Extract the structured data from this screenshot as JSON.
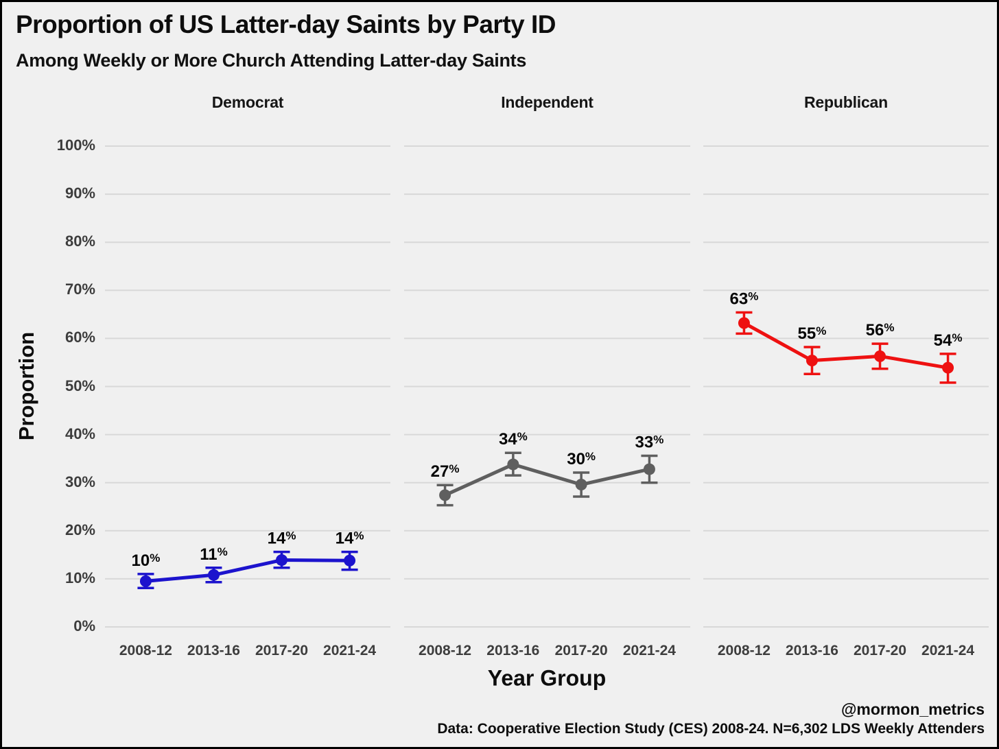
{
  "chart_data": {
    "type": "line",
    "faceted": true,
    "title": "Proportion of US Latter-day Saints by Party ID",
    "subtitle": "Among Weekly or More Church Attending Latter-day Saints",
    "xlabel": "Year Group",
    "ylabel": "Proportion",
    "ylim": [
      0,
      100
    ],
    "yticks": [
      "0%",
      "10%",
      "20%",
      "30%",
      "40%",
      "50%",
      "60%",
      "70%",
      "80%",
      "90%",
      "100%"
    ],
    "categories": [
      "2008-12",
      "2013-16",
      "2017-20",
      "2021-24"
    ],
    "grid": "horizontal major gridlines only",
    "legend_position": "none",
    "error_bars": "confidence interval whiskers with caps",
    "facets": [
      {
        "name": "Democrat",
        "color": "#1c13cd",
        "values": [
          9.5,
          10.8,
          13.9,
          13.8
        ],
        "ci_low": [
          8.1,
          9.3,
          12.3,
          11.9
        ],
        "ci_high": [
          11.0,
          12.3,
          15.6,
          15.6
        ],
        "labels": [
          "10%",
          "11%",
          "14%",
          "14%"
        ]
      },
      {
        "name": "Independent",
        "color": "#5f5f5f",
        "values": [
          27.4,
          33.8,
          29.6,
          32.8
        ],
        "ci_low": [
          25.3,
          31.5,
          27.1,
          30.0
        ],
        "ci_high": [
          29.5,
          36.2,
          32.1,
          35.6
        ],
        "labels": [
          "27%",
          "34%",
          "30%",
          "33%"
        ]
      },
      {
        "name": "Republican",
        "color": "#ee1111",
        "values": [
          63.2,
          55.4,
          56.3,
          53.9
        ],
        "ci_low": [
          61.0,
          52.6,
          53.7,
          50.8
        ],
        "ci_high": [
          65.4,
          58.2,
          58.9,
          56.8
        ],
        "labels": [
          "63%",
          "55%",
          "56%",
          "54%"
        ]
      }
    ]
  },
  "caption": {
    "handle": "@mormon_metrics",
    "source": "Data: Cooperative Election Study (CES) 2008-24. N=6,302 LDS Weekly Attenders"
  },
  "colors": {
    "background": "#f0f0f0",
    "gridline": "#d8d8d8",
    "tick_label": "#3d3d3d",
    "text": "#0d0d0d",
    "frame_border": "#000000",
    "democrat": "#1c13cd",
    "independent": "#5f5f5f",
    "republican": "#ee1111"
  }
}
